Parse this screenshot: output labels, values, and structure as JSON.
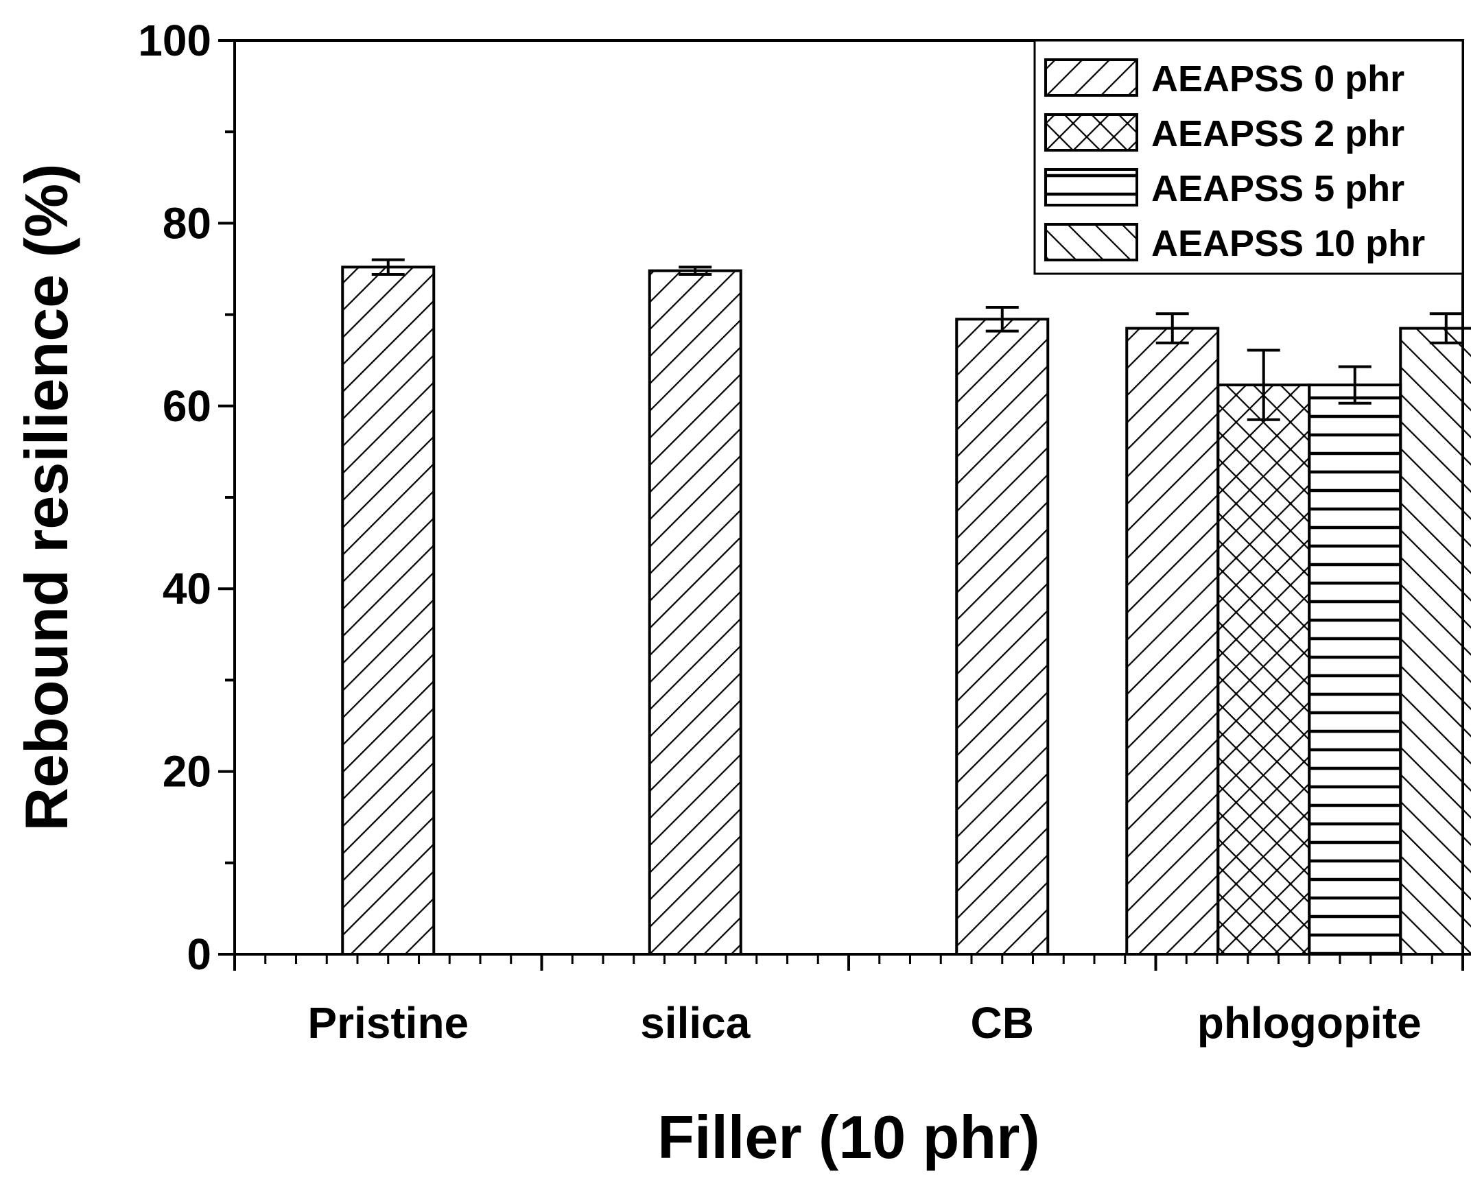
{
  "chart_data": {
    "type": "bar",
    "xlabel": "Filler (10 phr)",
    "ylabel": "Rebound resilience (%)",
    "ylim": [
      0,
      100
    ],
    "yticks": [
      0,
      20,
      40,
      60,
      80,
      100
    ],
    "categories": [
      "Pristine",
      "silica",
      "CB",
      "phlogopite"
    ],
    "legend_position": "top-right",
    "series": [
      {
        "name": "AEAPSS 0 phr",
        "pattern": "diagonal-forward",
        "values": [
          75.2,
          74.8,
          69.5,
          68.5
        ],
        "errors": [
          0.8,
          0.4,
          1.3,
          1.6
        ]
      },
      {
        "name": "AEAPSS 2 phr",
        "pattern": "crosshatch",
        "values": [
          null,
          null,
          null,
          62.3
        ],
        "errors": [
          null,
          null,
          null,
          3.8
        ]
      },
      {
        "name": "AEAPSS 5 phr",
        "pattern": "horizontal",
        "values": [
          null,
          null,
          null,
          62.3
        ],
        "errors": [
          null,
          null,
          null,
          2.0
        ]
      },
      {
        "name": "AEAPSS 10 phr",
        "pattern": "diagonal-backward",
        "values": [
          null,
          null,
          null,
          68.5
        ],
        "errors": [
          null,
          null,
          null,
          1.6
        ]
      }
    ]
  }
}
